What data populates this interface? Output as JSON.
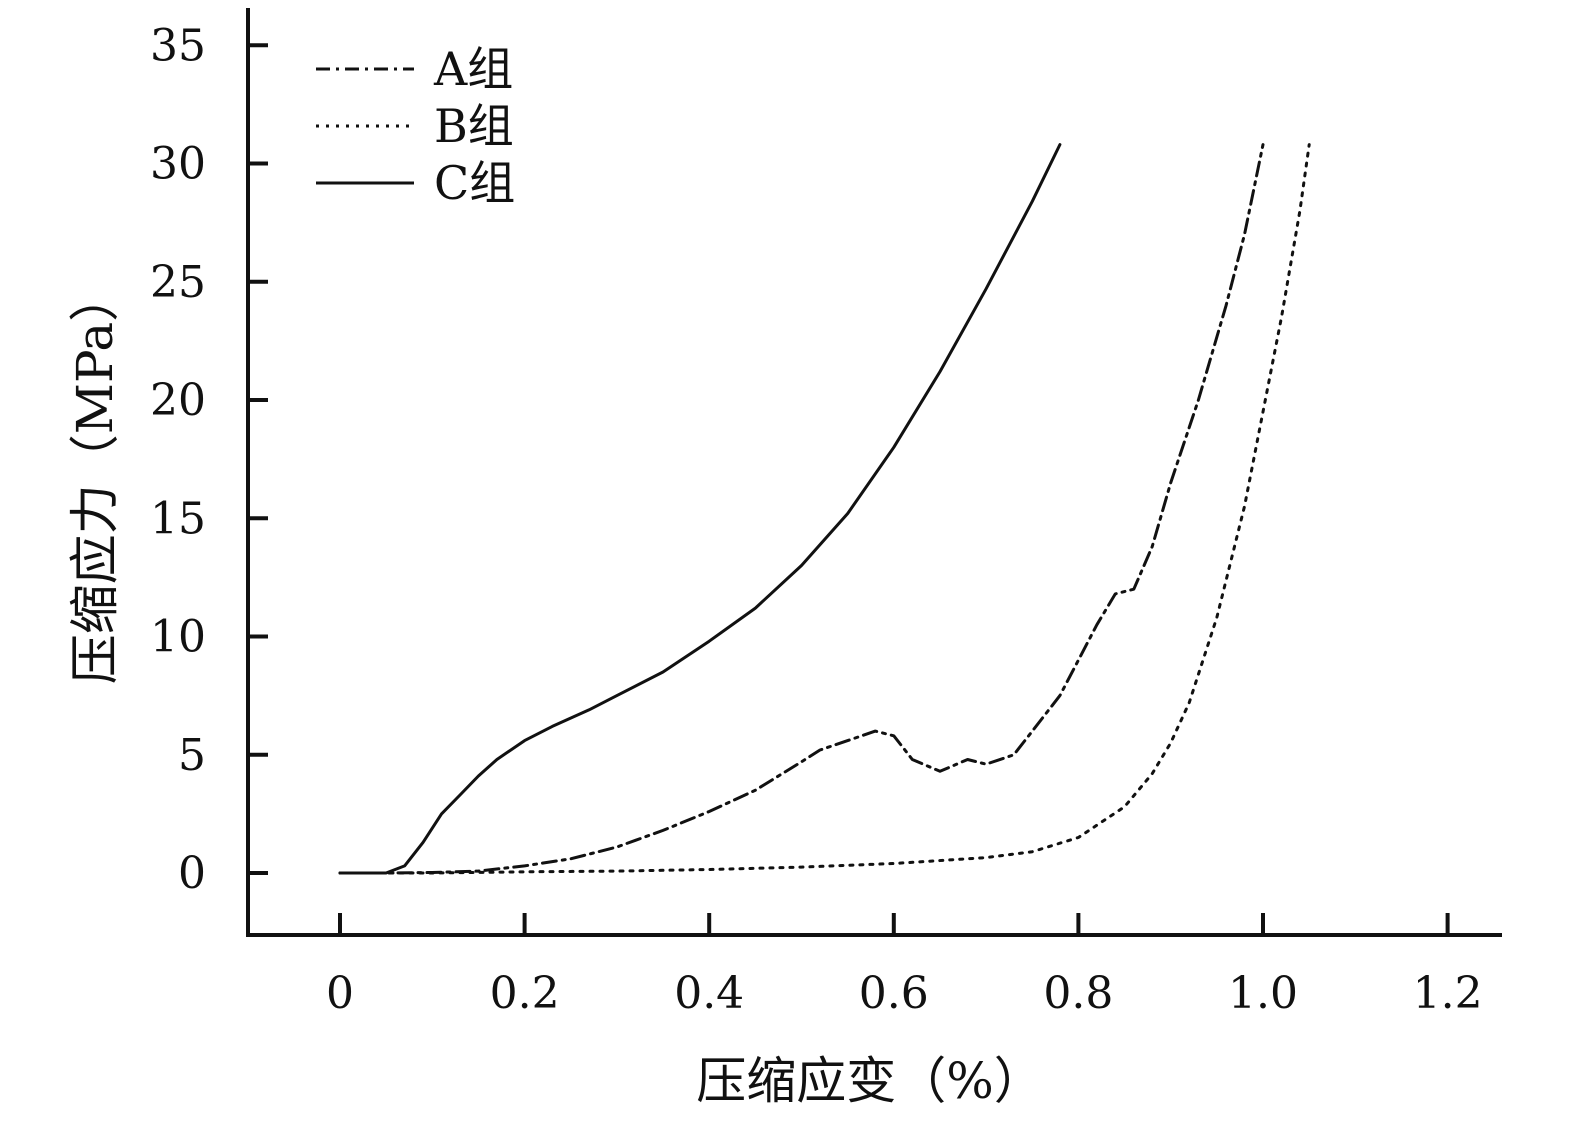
{
  "chart_data": {
    "type": "line",
    "title": "",
    "xlabel": "压缩应变（%）",
    "ylabel": "压缩应力（MPa）",
    "xlim": [
      -0.1,
      1.25
    ],
    "ylim": [
      -2.6,
      36.5
    ],
    "x_ticks": [
      {
        "value": 0,
        "label": "0"
      },
      {
        "value": 0.2,
        "label": "0.2"
      },
      {
        "value": 0.4,
        "label": "0.4"
      },
      {
        "value": 0.6,
        "label": "0.6"
      },
      {
        "value": 0.8,
        "label": "0.8"
      },
      {
        "value": 1.0,
        "label": "1.0"
      },
      {
        "value": 1.2,
        "label": "1.2"
      }
    ],
    "y_ticks": [
      {
        "value": 0,
        "label": "0"
      },
      {
        "value": 5,
        "label": "5"
      },
      {
        "value": 10,
        "label": "10"
      },
      {
        "value": 15,
        "label": "15"
      },
      {
        "value": 20,
        "label": "20"
      },
      {
        "value": 25,
        "label": "25"
      },
      {
        "value": 30,
        "label": "30"
      },
      {
        "value": 35,
        "label": "35"
      }
    ],
    "grid": false,
    "legend": "top-left",
    "series": [
      {
        "name": "A组",
        "style": "dashdot",
        "color": "#111111",
        "points": [
          [
            0,
            0
          ],
          [
            0.05,
            0
          ],
          [
            0.1,
            0.02
          ],
          [
            0.15,
            0.08
          ],
          [
            0.2,
            0.3
          ],
          [
            0.25,
            0.6
          ],
          [
            0.3,
            1.1
          ],
          [
            0.35,
            1.8
          ],
          [
            0.4,
            2.6
          ],
          [
            0.45,
            3.5
          ],
          [
            0.5,
            4.7
          ],
          [
            0.52,
            5.2
          ],
          [
            0.55,
            5.6
          ],
          [
            0.58,
            6.0
          ],
          [
            0.6,
            5.8
          ],
          [
            0.62,
            4.8
          ],
          [
            0.65,
            4.3
          ],
          [
            0.68,
            4.8
          ],
          [
            0.7,
            4.6
          ],
          [
            0.73,
            5.0
          ],
          [
            0.75,
            6.0
          ],
          [
            0.78,
            7.5
          ],
          [
            0.82,
            10.5
          ],
          [
            0.84,
            11.8
          ],
          [
            0.86,
            12.0
          ],
          [
            0.88,
            13.8
          ],
          [
            0.9,
            16.5
          ],
          [
            0.93,
            20.0
          ],
          [
            0.96,
            24.0
          ],
          [
            0.98,
            27.0
          ],
          [
            1.0,
            30.8
          ]
        ]
      },
      {
        "name": "B组",
        "style": "dotted",
        "color": "#111111",
        "points": [
          [
            0,
            0
          ],
          [
            0.1,
            0
          ],
          [
            0.2,
            0.05
          ],
          [
            0.3,
            0.08
          ],
          [
            0.4,
            0.15
          ],
          [
            0.5,
            0.25
          ],
          [
            0.6,
            0.4
          ],
          [
            0.7,
            0.65
          ],
          [
            0.75,
            0.9
          ],
          [
            0.8,
            1.5
          ],
          [
            0.85,
            2.8
          ],
          [
            0.88,
            4.2
          ],
          [
            0.9,
            5.5
          ],
          [
            0.92,
            7.2
          ],
          [
            0.95,
            10.8
          ],
          [
            0.98,
            15.5
          ],
          [
            1.0,
            19.5
          ],
          [
            1.02,
            23.5
          ],
          [
            1.04,
            28.0
          ],
          [
            1.05,
            30.8
          ]
        ]
      },
      {
        "name": "C组",
        "style": "solid",
        "color": "#111111",
        "points": [
          [
            0,
            0
          ],
          [
            0.05,
            0
          ],
          [
            0.07,
            0.3
          ],
          [
            0.09,
            1.3
          ],
          [
            0.11,
            2.5
          ],
          [
            0.13,
            3.3
          ],
          [
            0.15,
            4.1
          ],
          [
            0.17,
            4.8
          ],
          [
            0.2,
            5.6
          ],
          [
            0.23,
            6.2
          ],
          [
            0.27,
            6.9
          ],
          [
            0.3,
            7.5
          ],
          [
            0.35,
            8.5
          ],
          [
            0.4,
            9.8
          ],
          [
            0.45,
            11.2
          ],
          [
            0.5,
            13.0
          ],
          [
            0.55,
            15.2
          ],
          [
            0.6,
            18.0
          ],
          [
            0.65,
            21.2
          ],
          [
            0.7,
            24.7
          ],
          [
            0.75,
            28.4
          ],
          [
            0.78,
            30.8
          ]
        ]
      }
    ]
  }
}
